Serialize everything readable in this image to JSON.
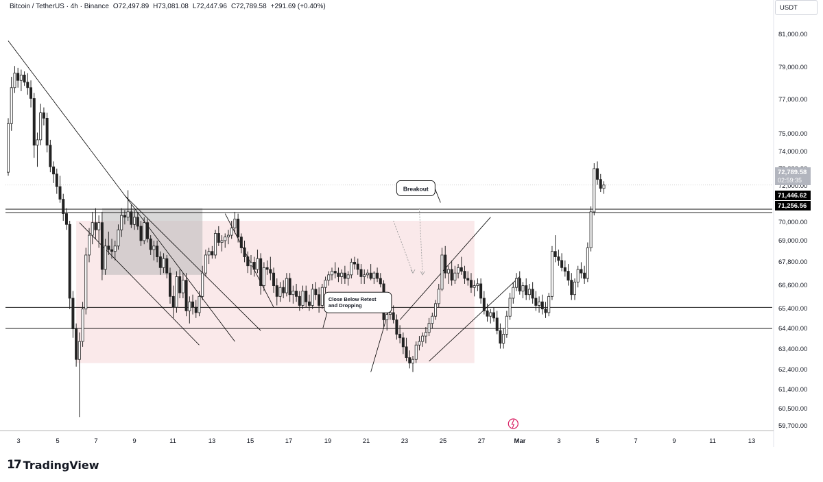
{
  "header": {
    "symbol": "Bitcoin / TetherUS · 4h · Binance",
    "open": "O72,497.89",
    "high": "H73,081.08",
    "low": "L72,447.96",
    "close": "C72,789.58",
    "change": "+291.69 (+0.40%)"
  },
  "currency": "USDT",
  "brand": {
    "logo": "17",
    "name": "TradingView"
  },
  "colors": {
    "up": "#26a69a",
    "down": "#ef5350",
    "candle": "#222222",
    "zone": "#f8e1e3",
    "box": "#b8b8b8",
    "line": "#000000",
    "dotted": "#9e9e9e",
    "event": "#d81b60"
  },
  "chart_data": {
    "type": "candlestick",
    "title": "",
    "xlabel": "",
    "ylabel": "",
    "ylim": [
      59300,
      82000
    ],
    "x_ticks": [
      "3",
      "5",
      "7",
      "9",
      "11",
      "13",
      "15",
      "17",
      "19",
      "21",
      "23",
      "25",
      "27",
      "Mar",
      "3",
      "5",
      "7",
      "9",
      "11",
      "13"
    ],
    "y_ticks": [
      "81,000.00",
      "79,000.00",
      "77,000.00",
      "75,000.00",
      "74,000.00",
      "73,000.00",
      "72,000.00",
      "70,000.00",
      "69,000.00",
      "67,800.00",
      "66,600.00",
      "65,400.00",
      "64,400.00",
      "63,400.00",
      "62,400.00",
      "61,400.00",
      "60,500.00",
      "59,700.00"
    ],
    "price_labels": [
      {
        "price": 72789.58,
        "text": "72,789.58",
        "sub": "02:59:35",
        "kind": "last"
      },
      {
        "price": 71446.62,
        "text": "71,446.62",
        "kind": "level"
      },
      {
        "price": 71256.56,
        "text": "71,256.56",
        "kind": "level"
      }
    ],
    "horizontal_levels": [
      71446.62,
      71256.56,
      65990,
      64820
    ],
    "annotations": [
      {
        "text": "Breakout",
        "price": 72500,
        "slot": 131
      },
      {
        "text": "Close Below Retest and Dropping",
        "price": 66300,
        "slot": 104
      }
    ],
    "candle_slots": 180,
    "candles": [
      [
        73500,
        76500,
        73300,
        76200
      ],
      [
        76200,
        78800,
        75800,
        78200
      ],
      [
        78200,
        79400,
        77900,
        79000
      ],
      [
        79000,
        79300,
        78200,
        78600
      ],
      [
        78600,
        79200,
        78000,
        78900
      ],
      [
        78900,
        79100,
        78300,
        78500
      ],
      [
        78500,
        79000,
        77800,
        78200
      ],
      [
        78200,
        78600,
        77100,
        77600
      ],
      [
        77600,
        77900,
        74300,
        75000
      ],
      [
        75000,
        75700,
        73800,
        75300
      ],
      [
        75300,
        77300,
        75000,
        76800
      ],
      [
        76800,
        77100,
        76100,
        76500
      ],
      [
        76500,
        76800,
        74600,
        75000
      ],
      [
        75000,
        75300,
        73500,
        73800
      ],
      [
        73800,
        74100,
        72900,
        73400
      ],
      [
        73400,
        73700,
        72300,
        72700
      ],
      [
        72700,
        73300,
        71800,
        72000
      ],
      [
        72000,
        72300,
        70800,
        71200
      ],
      [
        71200,
        71500,
        70300,
        70600
      ],
      [
        70600,
        70800,
        65900,
        66500
      ],
      [
        66500,
        66900,
        64300,
        64800
      ],
      [
        64800,
        65100,
        62700,
        63100
      ],
      [
        63100,
        64600,
        59900,
        64100
      ],
      [
        64100,
        66300,
        63800,
        65900
      ],
      [
        65900,
        69300,
        65600,
        68900
      ],
      [
        68900,
        70400,
        68500,
        70000
      ],
      [
        70000,
        71300,
        69500,
        70700
      ],
      [
        70700,
        71500,
        69800,
        70300
      ],
      [
        70300,
        71100,
        69300,
        70700
      ],
      [
        70700,
        71300,
        67500,
        68100
      ],
      [
        68100,
        69800,
        67800,
        69400
      ],
      [
        69400,
        70200,
        68900,
        69200
      ],
      [
        69200,
        69800,
        68700,
        69100
      ],
      [
        69100,
        69700,
        68600,
        69400
      ],
      [
        69400,
        70600,
        69200,
        70300
      ],
      [
        70300,
        71500,
        69900,
        71100
      ],
      [
        71100,
        71400,
        70600,
        71000
      ],
      [
        71000,
        72500,
        70800,
        71300
      ],
      [
        71300,
        71700,
        70400,
        70600
      ],
      [
        70600,
        71400,
        70300,
        71000
      ],
      [
        71000,
        71300,
        70300,
        70500
      ],
      [
        70500,
        70800,
        69400,
        69700
      ],
      [
        69700,
        71000,
        69500,
        70700
      ],
      [
        70700,
        70900,
        69600,
        69800
      ],
      [
        69800,
        70000,
        68900,
        69200
      ],
      [
        69200,
        69700,
        68600,
        69400
      ],
      [
        69400,
        69700,
        68500,
        68800
      ],
      [
        68800,
        69100,
        67800,
        68200
      ],
      [
        68200,
        69000,
        67900,
        68700
      ],
      [
        68700,
        68900,
        67600,
        67900
      ],
      [
        67900,
        68200,
        66200,
        66600
      ],
      [
        66600,
        67200,
        65400,
        66000
      ],
      [
        66000,
        68000,
        65700,
        67700
      ],
      [
        67700,
        68100,
        66500,
        66800
      ],
      [
        66800,
        67900,
        66500,
        67500
      ],
      [
        67500,
        67900,
        65500,
        65800
      ],
      [
        65800,
        66600,
        65100,
        66300
      ],
      [
        66300,
        66700,
        65600,
        66000
      ],
      [
        66000,
        66400,
        65400,
        65700
      ],
      [
        65700,
        66900,
        65500,
        66600
      ],
      [
        66600,
        68300,
        66400,
        67900
      ],
      [
        67900,
        69200,
        67700,
        68900
      ],
      [
        68900,
        69300,
        68400,
        69100
      ],
      [
        69100,
        69400,
        68700,
        68900
      ],
      [
        68900,
        70300,
        68700,
        70100
      ],
      [
        70100,
        70500,
        69400,
        69600
      ],
      [
        69600,
        70000,
        69100,
        69700
      ],
      [
        69700,
        70100,
        69300,
        69900
      ],
      [
        69900,
        70300,
        69500,
        70000
      ],
      [
        70000,
        70800,
        69800,
        70400
      ],
      [
        70400,
        71300,
        70100,
        70900
      ],
      [
        70900,
        71200,
        69600,
        69900
      ],
      [
        69900,
        70100,
        69000,
        69300
      ],
      [
        69300,
        69700,
        68500,
        68800
      ],
      [
        68800,
        69100,
        67900,
        68300
      ],
      [
        68300,
        68900,
        67800,
        68500
      ],
      [
        68500,
        68800,
        67700,
        68100
      ],
      [
        68100,
        69200,
        67900,
        68700
      ],
      [
        68700,
        69000,
        66700,
        67200
      ],
      [
        67200,
        68500,
        66900,
        68200
      ],
      [
        68200,
        68600,
        67800,
        68100
      ],
      [
        68100,
        68800,
        67500,
        67900
      ],
      [
        67900,
        68200,
        66800,
        67200
      ],
      [
        67200,
        67600,
        66100,
        66600
      ],
      [
        66600,
        67400,
        66300,
        67100
      ],
      [
        67100,
        67500,
        66500,
        66800
      ],
      [
        66800,
        67900,
        66600,
        67600
      ],
      [
        67600,
        67900,
        66300,
        66700
      ],
      [
        66700,
        67200,
        66200,
        66900
      ],
      [
        66900,
        67300,
        66300,
        66600
      ],
      [
        66600,
        66900,
        65800,
        66100
      ],
      [
        66100,
        67200,
        65900,
        66900
      ],
      [
        66900,
        67200,
        66000,
        66300
      ],
      [
        66300,
        66700,
        65800,
        66100
      ],
      [
        66100,
        67300,
        65900,
        67000
      ],
      [
        67000,
        67400,
        66400,
        66700
      ],
      [
        66700,
        67100,
        65700,
        66100
      ],
      [
        66100,
        67300,
        65900,
        67100
      ],
      [
        67100,
        67700,
        66800,
        67500
      ],
      [
        67500,
        68000,
        67200,
        67800
      ],
      [
        67800,
        68200,
        67500,
        68000
      ],
      [
        68000,
        68500,
        67600,
        67900
      ],
      [
        67900,
        68200,
        67400,
        67700
      ],
      [
        67700,
        68100,
        67300,
        67900
      ],
      [
        67900,
        68300,
        67300,
        67600
      ],
      [
        67600,
        68000,
        67200,
        67800
      ],
      [
        67800,
        68700,
        67600,
        68500
      ],
      [
        68500,
        68800,
        68100,
        68400
      ],
      [
        68400,
        68700,
        67800,
        68100
      ],
      [
        68100,
        68400,
        67300,
        67700
      ],
      [
        67700,
        68100,
        67300,
        67800
      ],
      [
        67800,
        68100,
        67600,
        67900
      ],
      [
        67900,
        68400,
        67500,
        67600
      ],
      [
        67600,
        68000,
        67300,
        67900
      ],
      [
        67900,
        68200,
        67400,
        67600
      ],
      [
        67600,
        67900,
        67100,
        67300
      ],
      [
        67300,
        67500,
        64900,
        65300
      ],
      [
        65300,
        65900,
        64700,
        65600
      ],
      [
        65600,
        66000,
        65300,
        65700
      ],
      [
        65700,
        66100,
        65100,
        65300
      ],
      [
        65300,
        65600,
        64200,
        64500
      ],
      [
        64500,
        65000,
        64000,
        64300
      ],
      [
        64300,
        64600,
        63400,
        63800
      ],
      [
        63800,
        64300,
        63000,
        63200
      ],
      [
        63200,
        63600,
        62600,
        62900
      ],
      [
        62900,
        63300,
        62400,
        63100
      ],
      [
        63100,
        64100,
        62900,
        63900
      ],
      [
        63900,
        64400,
        63600,
        64100
      ],
      [
        64100,
        64600,
        63800,
        64400
      ],
      [
        64400,
        64900,
        64000,
        64600
      ],
      [
        64600,
        65400,
        64400,
        65100
      ],
      [
        65100,
        65700,
        64800,
        65500
      ],
      [
        65500,
        66400,
        65300,
        66200
      ],
      [
        66200,
        67300,
        66000,
        67000
      ],
      [
        67000,
        69300,
        66900,
        68900
      ],
      [
        68900,
        69400,
        67600,
        67900
      ],
      [
        67900,
        68300,
        67300,
        68100
      ],
      [
        68100,
        68600,
        67200,
        67500
      ],
      [
        67500,
        68300,
        67300,
        67900
      ],
      [
        67900,
        68400,
        67600,
        68200
      ],
      [
        68200,
        68800,
        67800,
        68000
      ],
      [
        68000,
        68300,
        67300,
        67600
      ],
      [
        67600,
        68000,
        67200,
        67500
      ],
      [
        67500,
        67900,
        66800,
        67100
      ],
      [
        67100,
        67500,
        66600,
        67200
      ],
      [
        67200,
        67600,
        66900,
        67300
      ],
      [
        67300,
        67600,
        66200,
        66500
      ],
      [
        66500,
        66900,
        65600,
        65800
      ],
      [
        65800,
        66200,
        65200,
        65500
      ],
      [
        65500,
        65900,
        65100,
        65700
      ],
      [
        65700,
        66000,
        65200,
        65400
      ],
      [
        65400,
        65800,
        64500,
        64700
      ],
      [
        64700,
        65100,
        63700,
        64000
      ],
      [
        64000,
        64800,
        63700,
        64500
      ],
      [
        64500,
        65800,
        64300,
        65500
      ],
      [
        65500,
        66800,
        65300,
        66500
      ],
      [
        66500,
        67400,
        66200,
        67100
      ],
      [
        67100,
        67900,
        66900,
        67600
      ],
      [
        67600,
        68000,
        66700,
        66900
      ],
      [
        66900,
        67400,
        66500,
        67200
      ],
      [
        67200,
        67600,
        66400,
        66700
      ],
      [
        66700,
        67300,
        66400,
        67000
      ],
      [
        67000,
        67400,
        66200,
        66500
      ],
      [
        66500,
        66900,
        65800,
        66100
      ],
      [
        66100,
        66600,
        65700,
        66300
      ],
      [
        66300,
        66700,
        65600,
        65900
      ],
      [
        65900,
        66300,
        65400,
        65700
      ],
      [
        65700,
        66800,
        65500,
        66600
      ],
      [
        66600,
        69400,
        66400,
        69100
      ],
      [
        69100,
        70000,
        68500,
        68800
      ],
      [
        68800,
        69200,
        68300,
        68600
      ],
      [
        68600,
        69000,
        68000,
        68200
      ],
      [
        68200,
        68600,
        67700,
        68000
      ],
      [
        68000,
        68400,
        67200,
        67500
      ],
      [
        67500,
        67900,
        66400,
        66700
      ],
      [
        66700,
        67600,
        66400,
        67400
      ],
      [
        67400,
        68300,
        67100,
        68100
      ],
      [
        68100,
        68500,
        67600,
        67900
      ],
      [
        67900,
        68300,
        67300,
        67600
      ],
      [
        67600,
        69600,
        67400,
        69300
      ],
      [
        69300,
        71600,
        69100,
        71300
      ],
      [
        71300,
        74000,
        71100,
        73700
      ],
      [
        73700,
        74100,
        72800,
        73100
      ],
      [
        73100,
        73400,
        72400,
        72600
      ],
      [
        72600,
        73000,
        72300,
        72790
      ]
    ],
    "shapes": {
      "zones": [
        {
          "slot0": 21,
          "slot1": 144,
          "top": 70800,
          "bottom": 62900,
          "fill": "zone"
        },
        {
          "slot0": 29,
          "slot1": 60,
          "top": 71500,
          "bottom": 67800,
          "fill": "box"
        }
      ],
      "trendlines": [
        {
          "slot0": 0,
          "p0": 80800,
          "slot1": 70,
          "p1": 64100
        },
        {
          "slot0": 22,
          "p0": 70700,
          "slot1": 59,
          "p1": 63900
        },
        {
          "slot0": 36,
          "p0": 72200,
          "slot1": 78,
          "p1": 64700
        },
        {
          "slot0": 67,
          "p0": 71200,
          "slot1": 82,
          "p1": 66000
        },
        {
          "slot0": 112,
          "p0": 62400,
          "slot1": 118,
          "p1": 66100
        },
        {
          "slot0": 121,
          "p0": 65300,
          "slot1": 149,
          "p1": 71000
        },
        {
          "slot0": 130,
          "p0": 63000,
          "slot1": 158,
          "p1": 67700
        }
      ],
      "dotted_arrows": [
        {
          "slot0": 119,
          "p0": 70800,
          "slot1": 125,
          "p1": 67900
        },
        {
          "slot0": 127,
          "p0": 71500,
          "slot1": 128,
          "p1": 67800
        }
      ],
      "event_marker": {
        "slot": 156
      }
    }
  }
}
